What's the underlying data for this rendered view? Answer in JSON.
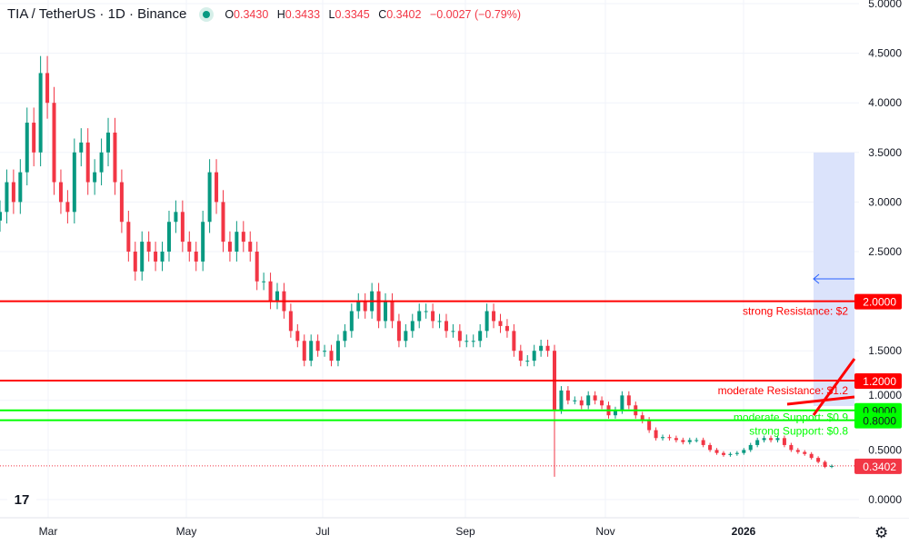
{
  "header": {
    "title": "TIA / TetherUS · 1D · Binance",
    "o_label": "O",
    "o": "0.3430",
    "h_label": "H",
    "h": "0.3433",
    "l_label": "L",
    "l": "0.3345",
    "c_label": "C",
    "c": "0.3402",
    "change": "−0.0027 (−0.79%)"
  },
  "logo": "TV",
  "settings_icon": "gear-icon",
  "colors": {
    "up": "#089981",
    "down": "#f23645",
    "resistance": "#ff0000",
    "support": "#00ff00",
    "zone": "#dbe3fb"
  },
  "chart_data": {
    "type": "candlestick",
    "ylim": [
      0,
      5
    ],
    "y_ticks": [
      "5.0000",
      "4.5000",
      "4.0000",
      "3.5000",
      "3.0000",
      "2.5000",
      "2.0000",
      "1.5000",
      "1.0000",
      "0.5000",
      "0.0000"
    ],
    "x_ticks": [
      "Mar",
      "May",
      "Jul",
      "Sep",
      "Nov",
      "2026"
    ],
    "grid": true,
    "last_price": "0.3402",
    "closes": [
      2.9,
      3.2,
      3.0,
      3.3,
      3.8,
      3.5,
      4.3,
      4.0,
      3.2,
      3.0,
      2.9,
      3.5,
      3.6,
      3.2,
      3.3,
      3.5,
      3.7,
      3.2,
      2.8,
      2.5,
      2.3,
      2.6,
      2.5,
      2.4,
      2.5,
      2.8,
      2.9,
      2.6,
      2.5,
      2.4,
      2.8,
      3.3,
      3.0,
      2.6,
      2.5,
      2.7,
      2.6,
      2.5,
      2.2,
      2.2,
      2.0,
      2.1,
      1.9,
      1.7,
      1.6,
      1.4,
      1.6,
      1.5,
      1.5,
      1.4,
      1.6,
      1.7,
      1.9,
      2.0,
      1.9,
      2.1,
      1.8,
      2.0,
      1.8,
      1.6,
      1.7,
      1.8,
      1.9,
      1.9,
      1.8,
      1.8,
      1.7,
      1.7,
      1.6,
      1.6,
      1.6,
      1.7,
      1.9,
      1.8,
      1.75,
      1.7,
      1.5,
      1.4,
      1.4,
      1.5,
      1.55,
      1.5,
      0.9,
      1.1,
      1.0,
      1.0,
      0.95,
      1.05,
      1.0,
      0.95,
      0.85,
      0.9,
      1.05,
      0.95,
      0.85,
      0.8,
      0.7,
      0.62,
      0.63,
      0.62,
      0.6,
      0.58,
      0.6,
      0.6,
      0.55,
      0.5,
      0.47,
      0.45,
      0.46,
      0.47,
      0.5,
      0.55,
      0.6,
      0.62,
      0.6,
      0.62,
      0.55,
      0.5,
      0.48,
      0.46,
      0.42,
      0.38,
      0.33,
      0.34
    ],
    "spike_low": {
      "index": 82,
      "low": 0.23
    },
    "levels": [
      {
        "price": 2.0,
        "label": "strong Resistance: $2",
        "axis_label": "2.0000",
        "kind": "resistance"
      },
      {
        "price": 1.2,
        "label": "moderate Resistance: $1.2",
        "axis_label": "1.2000",
        "kind": "resistance"
      },
      {
        "price": 0.9,
        "label": "moderate Support: $0.9",
        "axis_label": "0.9000",
        "kind": "support"
      },
      {
        "price": 0.8,
        "label": "strong Support: $0.8",
        "axis_label": "0.8000",
        "kind": "support"
      }
    ]
  }
}
